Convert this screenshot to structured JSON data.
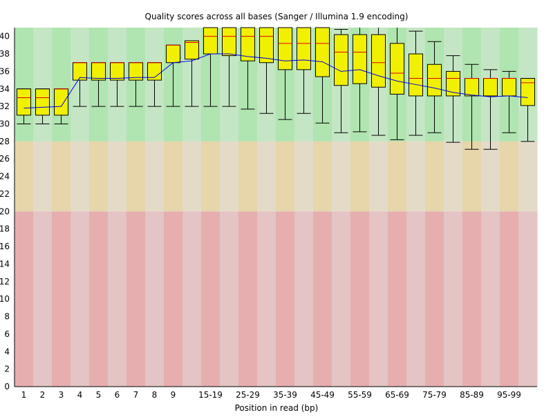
{
  "chart_data": {
    "type": "box",
    "title": "Quality scores across all bases (Sanger / Illumina 1.9 encoding)",
    "xlabel": "Position in read (bp)",
    "ylabel": "",
    "ylim": [
      0,
      41
    ],
    "yticks": [
      0,
      2,
      4,
      6,
      8,
      10,
      12,
      14,
      16,
      18,
      20,
      22,
      24,
      26,
      28,
      30,
      32,
      34,
      36,
      38,
      40
    ],
    "bands": [
      {
        "from": 28,
        "to": 41,
        "colors": [
          "#b0e4b0",
          "#c4e6c4"
        ]
      },
      {
        "from": 20,
        "to": 28,
        "colors": [
          "#e6d6aa",
          "#e4dac8"
        ]
      },
      {
        "from": 0,
        "to": 20,
        "colors": [
          "#e6aeae",
          "#e4c4c4"
        ]
      }
    ],
    "colors": {
      "box": "#f0f000",
      "median": "#e00000",
      "mean": "#0000e0"
    },
    "categories": [
      "1",
      "2",
      "3",
      "4",
      "5",
      "6",
      "7",
      "8",
      "9",
      "",
      "15-19",
      "",
      "25-29",
      "",
      "35-39",
      "",
      "45-49",
      "",
      "55-59",
      "",
      "65-69",
      "",
      "75-79",
      "",
      "85-89",
      "",
      "95-99",
      ""
    ],
    "lower_whisker": [
      30,
      30,
      30,
      32,
      32,
      32,
      32,
      32,
      32,
      32,
      32,
      32,
      31.7,
      31.2,
      30.5,
      31.2,
      30.1,
      29.0,
      29.1,
      28.7,
      28.2,
      28.7,
      29.0,
      27.9,
      27.1,
      27.1,
      29.0,
      28.0
    ],
    "q1": [
      31,
      31,
      31,
      35,
      35,
      35,
      35,
      35,
      37,
      37.4,
      38.0,
      37.8,
      37.2,
      37.0,
      36.2,
      36.2,
      35.4,
      34.4,
      34.6,
      34.2,
      33.4,
      33.2,
      33.2,
      33.2,
      33.2,
      33.2,
      33.2,
      32.1
    ],
    "median": [
      33,
      33,
      34,
      37,
      37,
      37,
      37,
      37,
      39,
      39.3,
      40,
      40,
      40,
      40,
      39.2,
      39.2,
      39.2,
      38.2,
      38.2,
      37.0,
      35.8,
      35.2,
      35.2,
      35.2,
      35.2,
      35.2,
      35.2,
      34.7
    ],
    "q3": [
      34,
      34,
      34,
      37,
      37,
      37,
      37,
      37,
      39,
      39.5,
      41,
      41,
      41,
      41,
      41,
      41,
      41,
      40.2,
      40.2,
      40.2,
      39.2,
      38.0,
      36.8,
      36.0,
      35.2,
      35.2,
      35.2,
      35.2
    ],
    "upper_whisker": [
      34,
      34,
      34,
      37,
      37,
      37,
      37,
      37,
      39,
      39.5,
      41,
      41,
      41,
      41,
      41,
      41,
      41,
      40.8,
      41,
      41,
      41,
      40.6,
      39.4,
      37.8,
      36.8,
      36.2,
      36.0,
      35.2
    ],
    "mean": [
      31.8,
      31.9,
      32.0,
      35.3,
      35.2,
      35.2,
      35.3,
      35.3,
      37.0,
      37.2,
      38.0,
      38.0,
      37.7,
      37.5,
      37.2,
      37.3,
      37.1,
      36.0,
      36.2,
      35.5,
      34.9,
      34.5,
      34.1,
      33.6,
      33.3,
      33.1,
      33.2,
      33.0
    ]
  }
}
